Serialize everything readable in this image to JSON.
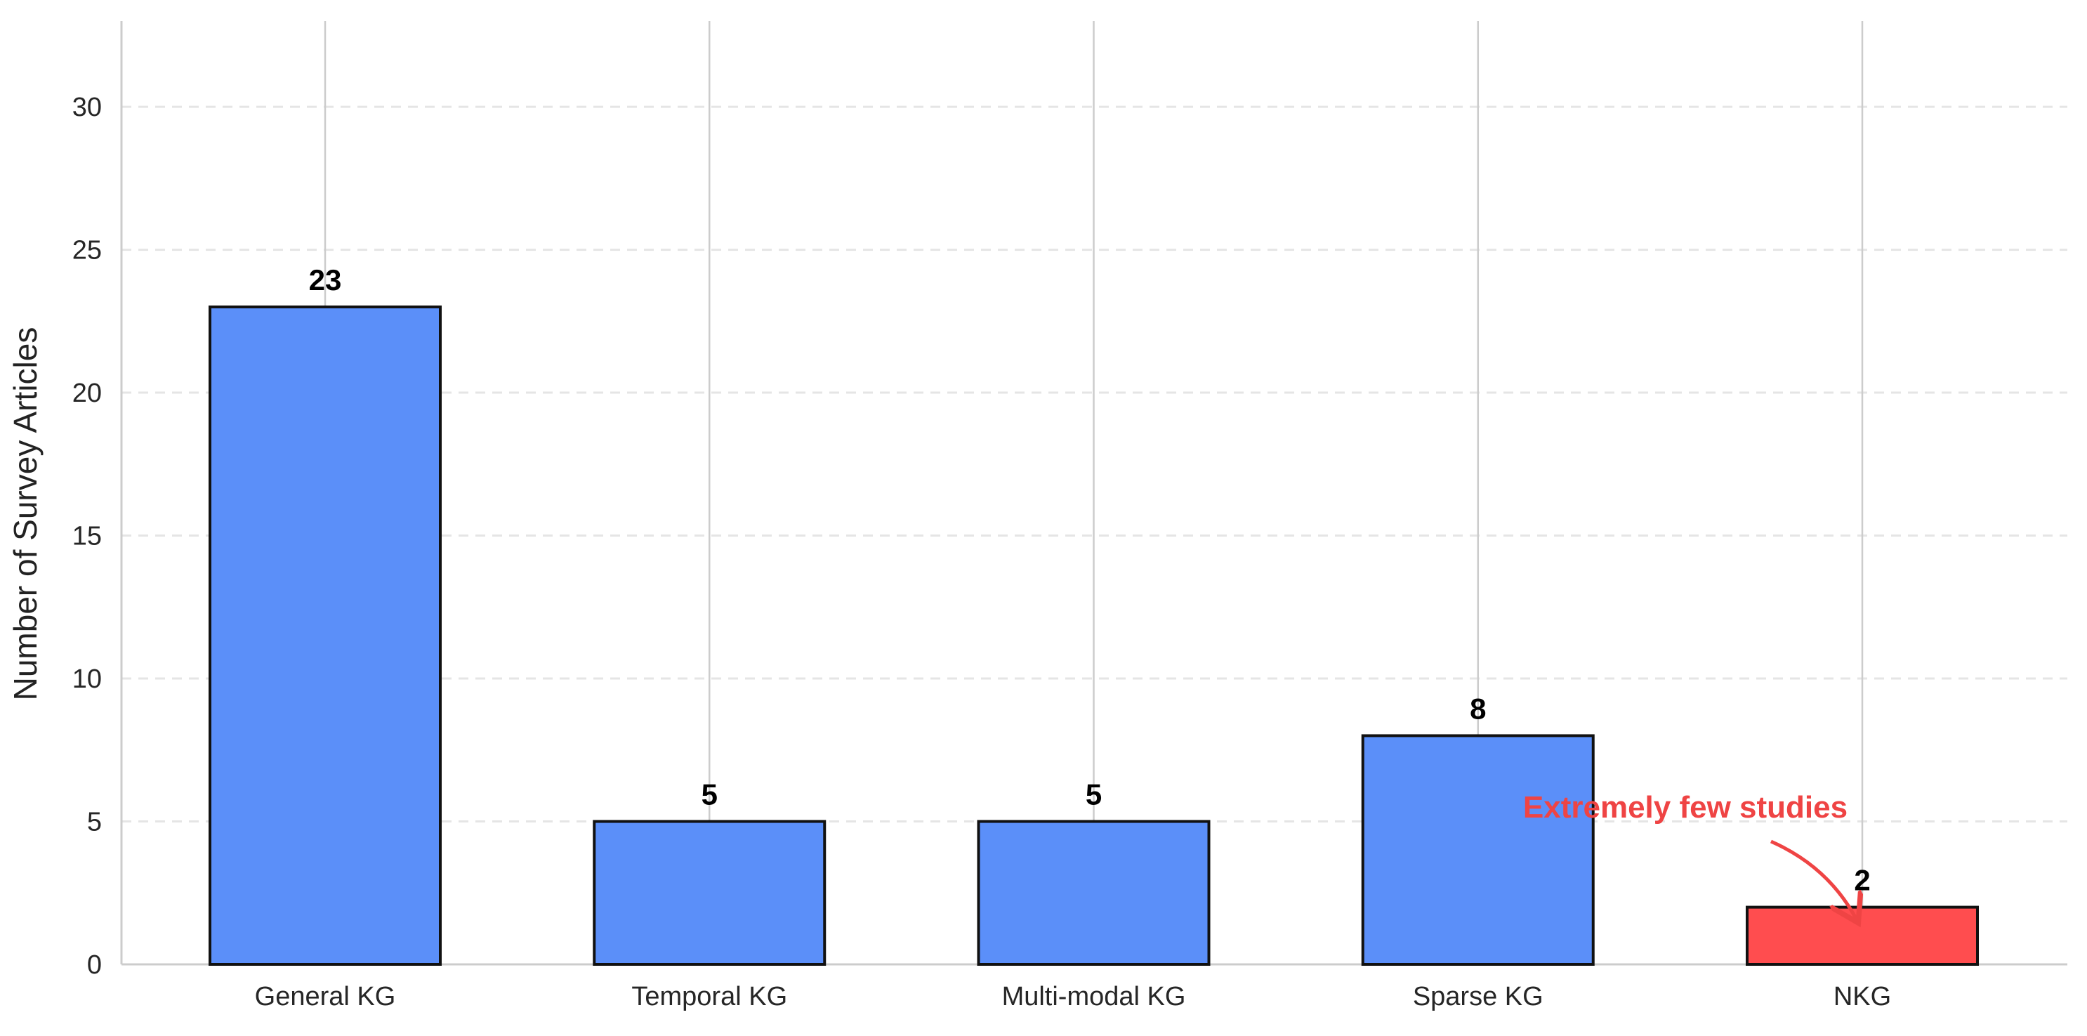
{
  "chart_data": {
    "type": "bar",
    "title": "",
    "xlabel": "",
    "ylabel": "Number of Survey Articles",
    "categories": [
      "General KG",
      "Temporal KG",
      "Multi-modal KG",
      "Sparse KG",
      "NKG"
    ],
    "values": [
      23,
      5,
      5,
      8,
      2
    ],
    "data_labels": [
      "23",
      "5",
      "5",
      "8",
      "2"
    ],
    "bar_colors": [
      "#5b8ff9",
      "#5b8ff9",
      "#5b8ff9",
      "#5b8ff9",
      "#ff4d4f"
    ],
    "ylim": [
      0,
      33
    ],
    "yticks": [
      0,
      5,
      10,
      15,
      20,
      25,
      30
    ],
    "ytick_labels": [
      "0",
      "5",
      "10",
      "15",
      "20",
      "25",
      "30"
    ],
    "grid": {
      "horizontal": "dashed",
      "vertical": "solid at category centers"
    },
    "annotation": {
      "text": "Extremely few studies",
      "target_category": "NKG",
      "target_value": 2,
      "color": "#ef4444"
    }
  }
}
